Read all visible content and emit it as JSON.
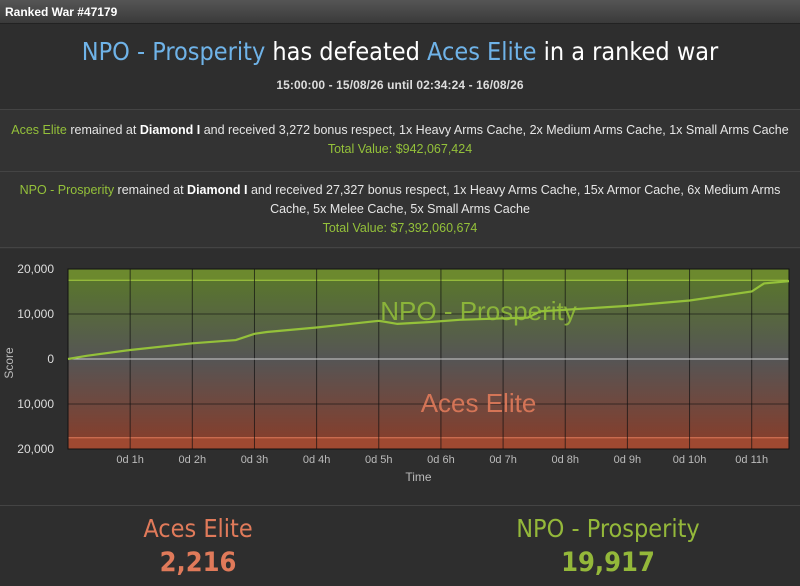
{
  "window": {
    "title": "Ranked War #47179"
  },
  "header": {
    "winner": "NPO - Prosperity",
    "middle": " has defeated ",
    "loser": "Aces Elite",
    "suffix": " in a ranked war",
    "period": "15:00:00 - 15/08/26 until 02:34:24 - 16/08/26"
  },
  "rewards": [
    {
      "faction": "Aces Elite",
      "text1": " remained at ",
      "rank": "Diamond I",
      "text2": " and received 3,272 bonus respect, 1x Heavy Arms Cache, 2x Medium Arms Cache, 1x Small Arms Cache",
      "total": "Total Value: $942,067,424"
    },
    {
      "faction": "NPO - Prosperity",
      "text1": " remained at ",
      "rank": "Diamond I",
      "text2": " and received 27,327 bonus respect, 1x Heavy Arms Cache, 15x Armor Cache, 6x Medium Arms Cache, 5x Melee Cache, 5x Small Arms Cache",
      "total": "Total Value: $7,392,060,674"
    }
  ],
  "chart_data": {
    "type": "line",
    "xlabel": "Time",
    "ylabel": "Score",
    "x_ticks": [
      "0d 1h",
      "0d 2h",
      "0d 3h",
      "0d 4h",
      "0d 5h",
      "0d 6h",
      "0d 7h",
      "0d 8h",
      "0d 9h",
      "0d 10h",
      "0d 11h"
    ],
    "y_ticks": [
      "20,000",
      "10,000",
      "0",
      "10,000",
      "20,000"
    ],
    "ylim": [
      -20000,
      20000
    ],
    "xlim_hours": [
      0,
      11.6
    ],
    "upper_label": "NPO - Prosperity",
    "lower_label": "Aces Elite",
    "series": [
      {
        "x": [
          0,
          0.3,
          1,
          2,
          2.7,
          3.0,
          3.2,
          4,
          5,
          5.3,
          5.8,
          6.3,
          7.4,
          7.6,
          9,
          10,
          11,
          11.2,
          11.6
        ],
        "y": [
          0,
          700,
          2000,
          3500,
          4200,
          5600,
          6000,
          7000,
          8500,
          7800,
          8200,
          8700,
          9200,
          10600,
          11800,
          13000,
          15000,
          16800,
          17300
        ]
      }
    ],
    "colors": {
      "line": "#94c13a",
      "upper": "#6e8a2e",
      "lower": "#a04a32"
    }
  },
  "scores": {
    "left": {
      "name": "Aces Elite",
      "score": "2,216"
    },
    "right": {
      "name": "NPO - Prosperity",
      "score": "19,917"
    }
  }
}
